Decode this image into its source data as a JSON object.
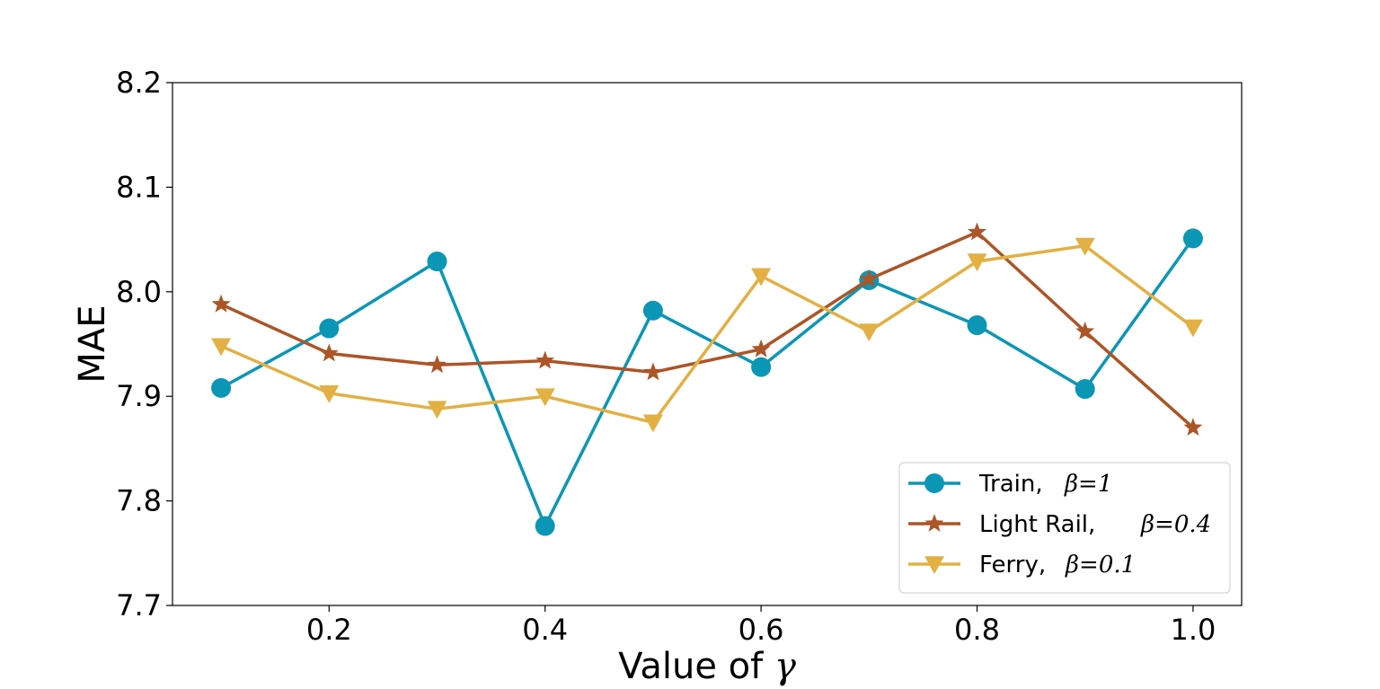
{
  "chart_data": {
    "type": "line",
    "xlabel_prefix": "Value of ",
    "xlabel_symbol": "γ",
    "ylabel": "MAE",
    "xlim": [
      0.055,
      1.045
    ],
    "ylim": [
      7.7,
      8.2
    ],
    "xticks": [
      0.2,
      0.4,
      0.6,
      0.8,
      1.0
    ],
    "xtick_labels": [
      "0.2",
      "0.4",
      "0.6",
      "0.8",
      "1.0"
    ],
    "yticks": [
      7.7,
      7.8,
      7.9,
      8.0,
      8.1,
      8.2
    ],
    "ytick_labels": [
      "7.7",
      "7.8",
      "7.9",
      "8.0",
      "8.1",
      "8.2"
    ],
    "x": [
      0.1,
      0.2,
      0.3,
      0.4,
      0.5,
      0.6,
      0.7,
      0.8,
      0.9,
      1.0
    ],
    "legend_position": "lower-right",
    "series": [
      {
        "name": "Train",
        "legend_label": "Train,",
        "legend_beta": "β=1",
        "color": "#0c96b6",
        "marker": "circle",
        "values": [
          7.908,
          7.965,
          8.029,
          7.776,
          7.982,
          7.928,
          8.011,
          7.968,
          7.907,
          8.051
        ]
      },
      {
        "name": "Light Rail",
        "legend_label": "Light Rail,",
        "legend_beta": "β=0.4",
        "color": "#ac5527",
        "marker": "star",
        "values": [
          7.988,
          7.941,
          7.93,
          7.934,
          7.923,
          7.945,
          8.012,
          8.057,
          7.962,
          7.87
        ]
      },
      {
        "name": "Ferry",
        "legend_label": "Ferry,",
        "legend_beta": "β=0.1",
        "color": "#e2b043",
        "marker": "triangle-down",
        "values": [
          7.948,
          7.903,
          7.888,
          7.9,
          7.875,
          8.015,
          7.962,
          8.029,
          8.044,
          7.966
        ]
      }
    ]
  }
}
